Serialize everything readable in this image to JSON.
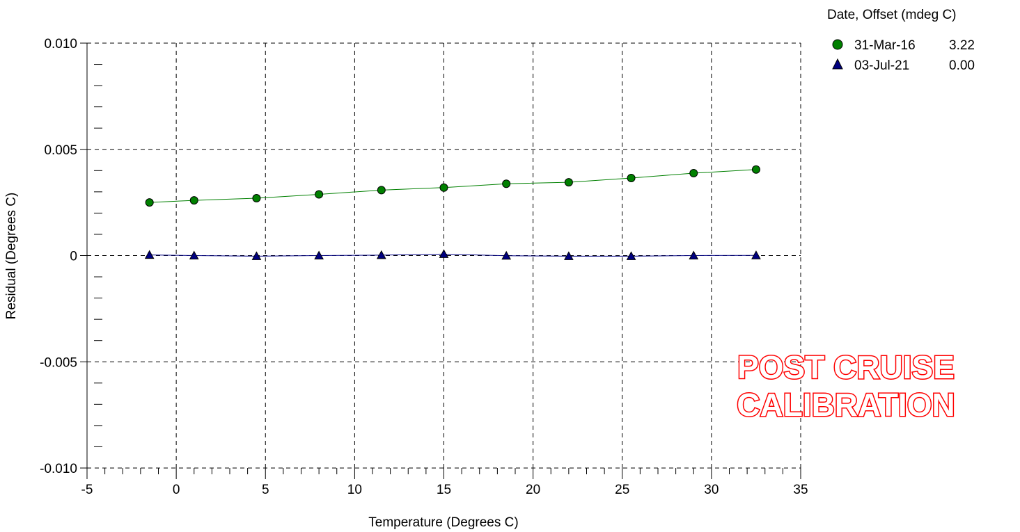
{
  "chart_data": {
    "type": "line",
    "xlabel": "Temperature (Degrees C)",
    "ylabel": "Residual (Degrees C)",
    "xlim": [
      -5,
      35
    ],
    "ylim": [
      -0.01,
      0.01
    ],
    "x_ticks": [
      -5,
      0,
      5,
      10,
      15,
      20,
      25,
      30,
      35
    ],
    "x_tick_labels": [
      "-5",
      "0",
      "5",
      "10",
      "15",
      "20",
      "25",
      "30",
      "35"
    ],
    "y_ticks": [
      0.01,
      0.005,
      0,
      -0.005,
      -0.01
    ],
    "y_tick_labels": [
      "0.010",
      "0.005",
      "0",
      "-0.005",
      "-0.010"
    ],
    "grid": true,
    "legend_position": "top-right",
    "legend_title": "Date, Offset (mdeg C)",
    "series": [
      {
        "name": "31-Mar-16",
        "offset": "3.22",
        "marker": "circle",
        "color": "#008000",
        "x": [
          -1.5,
          1.0,
          4.5,
          8.0,
          11.5,
          15.0,
          18.5,
          22.0,
          25.5,
          29.0,
          32.5
        ],
        "y": [
          0.0025,
          0.0026,
          0.0027,
          0.00288,
          0.00308,
          0.0032,
          0.00338,
          0.00345,
          0.00365,
          0.00388,
          0.00405
        ]
      },
      {
        "name": "03-Jul-21",
        "offset": "0.00",
        "marker": "triangle",
        "color": "#000080",
        "x": [
          -1.5,
          1.0,
          4.5,
          8.0,
          11.5,
          15.0,
          18.5,
          22.0,
          25.5,
          29.0,
          32.5
        ],
        "y": [
          3e-05,
          0.0,
          -3e-05,
          0.0,
          2e-05,
          7e-05,
          -1e-05,
          -3e-05,
          -3e-05,
          0.0,
          1e-05
        ]
      }
    ],
    "annotation": [
      "POST CRUISE",
      "CALIBRATION"
    ],
    "annotation_color": "#ff0000"
  }
}
